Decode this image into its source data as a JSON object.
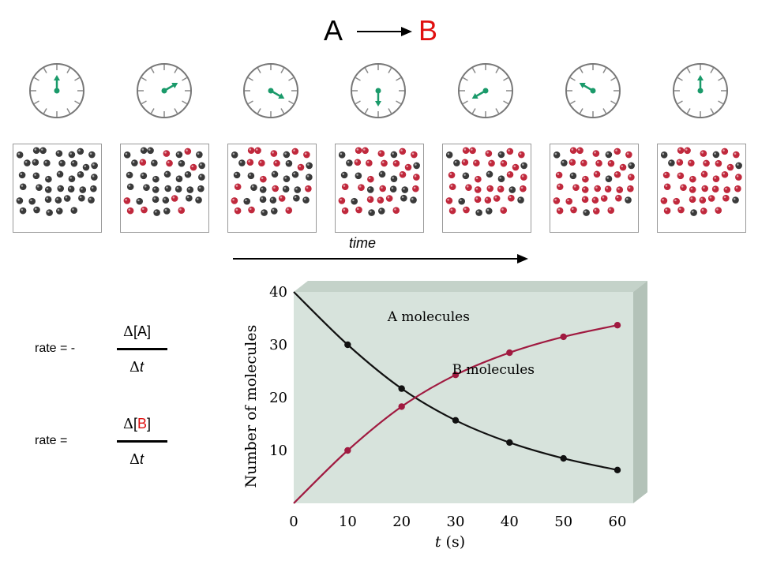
{
  "title": {
    "reactant": "A",
    "product": "B",
    "product_color": "#e01010",
    "arrow": "right-arrow"
  },
  "clocks": {
    "hand_color": "#1a9a6a",
    "hand_angles_deg": [
      0,
      60,
      120,
      180,
      240,
      300,
      360
    ]
  },
  "boxes": {
    "a_color": "#3a3a3a",
    "b_color": "#c0283c",
    "b_fraction": [
      0.0,
      0.25,
      0.46,
      0.61,
      0.71,
      0.79,
      0.84
    ],
    "molecules_per_box": 40
  },
  "time_label": "time",
  "equations": [
    {
      "prefix": "rate = -",
      "num_delta": "Δ",
      "num_bracket_open": "[",
      "num_species": "A",
      "num_bracket_close": "]",
      "den_delta": "Δ",
      "den_var": "t",
      "species_color": "#000000"
    },
    {
      "prefix": "rate =",
      "num_delta": "Δ",
      "num_bracket_open": "[",
      "num_species": "B",
      "num_bracket_close": "]",
      "den_delta": "Δ",
      "den_var": "t",
      "species_color": "#e01010"
    }
  ],
  "chart_data": {
    "type": "line",
    "x": [
      0,
      10,
      20,
      30,
      40,
      50,
      60
    ],
    "series": [
      {
        "name": "A molecules",
        "values": [
          40,
          30,
          21.7,
          15.7,
          11.5,
          8.5,
          6.3
        ],
        "color": "#111111",
        "label_at": [
          25,
          34.5
        ]
      },
      {
        "name": "B molecules",
        "values": [
          0,
          10,
          18.3,
          24.3,
          28.5,
          31.5,
          33.7
        ],
        "color": "#a01a40",
        "label_at": [
          37,
          24.5
        ]
      }
    ],
    "xlabel_var": "t",
    "xlabel_unit": " (s)",
    "ylabel": "Number of molecules",
    "xlim": [
      0,
      60
    ],
    "ylim": [
      0,
      40
    ],
    "xticks": [
      "0",
      "10",
      "20",
      "30",
      "40",
      "50",
      "60"
    ],
    "yticks": [
      "10",
      "20",
      "30",
      "40"
    ],
    "plot_bg": "#d7e3dc"
  }
}
